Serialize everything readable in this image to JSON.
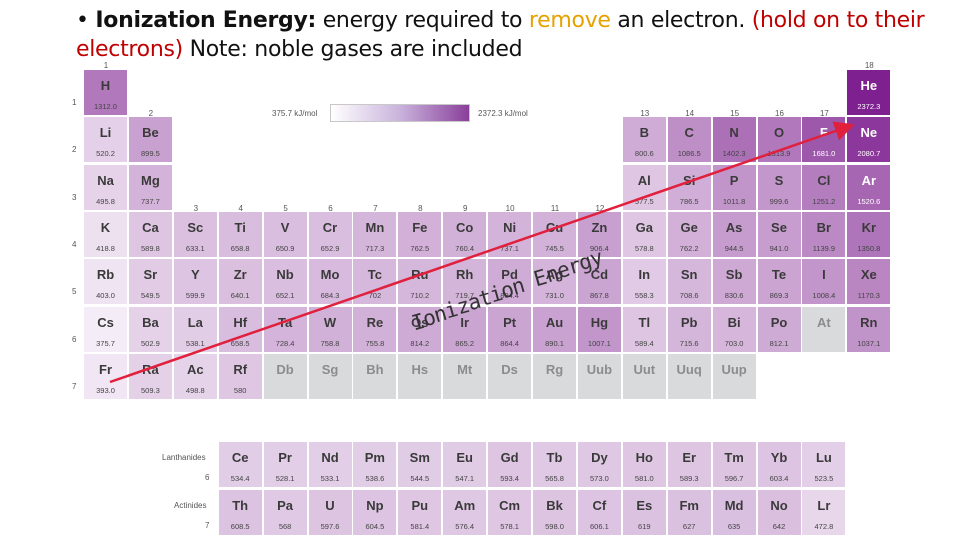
{
  "slide": {
    "bullet": "•",
    "label": "Ionization Energy:",
    "text_1": " energy required to ",
    "text_highlight": "remove",
    "text_2": " an electron. ",
    "text_red": "(hold on to their electrons)",
    "text_3": " Note: noble gases are included"
  },
  "legend": {
    "min": "375.7 kJ/mol",
    "max": "2372.3 kJ/mol"
  },
  "group_labels": [
    "1",
    "2",
    "3",
    "4",
    "5",
    "6",
    "7",
    "8",
    "9",
    "10",
    "11",
    "12",
    "13",
    "14",
    "15",
    "16",
    "17",
    "18"
  ],
  "period_labels": [
    "1",
    "2",
    "3",
    "4",
    "5",
    "6",
    "7"
  ],
  "series_labels": {
    "lanthanides": "Lanthanides",
    "lanthanides_period": "6",
    "actinides": "Actinides",
    "actinides_period": "7"
  },
  "annotation": "Ionization Energy",
  "colors": {
    "arrow": "#e0203c",
    "scale_low": "#ffffff",
    "scale_high": "#8a3f9a",
    "unknown_cell": "#d9dadb"
  },
  "elements": [
    {
      "symbol": "H",
      "value": "1312.0",
      "period": 1,
      "group": 1
    },
    {
      "symbol": "He",
      "value": "2372.3",
      "period": 1,
      "group": 18
    },
    {
      "symbol": "Li",
      "value": "520.2",
      "period": 2,
      "group": 1
    },
    {
      "symbol": "Be",
      "value": "899.5",
      "period": 2,
      "group": 2
    },
    {
      "symbol": "B",
      "value": "800.6",
      "period": 2,
      "group": 13
    },
    {
      "symbol": "C",
      "value": "1086.5",
      "period": 2,
      "group": 14
    },
    {
      "symbol": "N",
      "value": "1402.3",
      "period": 2,
      "group": 15
    },
    {
      "symbol": "O",
      "value": "1313.9",
      "period": 2,
      "group": 16
    },
    {
      "symbol": "F",
      "value": "1681.0",
      "period": 2,
      "group": 17
    },
    {
      "symbol": "Ne",
      "value": "2080.7",
      "period": 2,
      "group": 18
    },
    {
      "symbol": "Na",
      "value": "495.8",
      "period": 3,
      "group": 1
    },
    {
      "symbol": "Mg",
      "value": "737.7",
      "period": 3,
      "group": 2
    },
    {
      "symbol": "Al",
      "value": "577.5",
      "period": 3,
      "group": 13
    },
    {
      "symbol": "Si",
      "value": "786.5",
      "period": 3,
      "group": 14
    },
    {
      "symbol": "P",
      "value": "1011.8",
      "period": 3,
      "group": 15
    },
    {
      "symbol": "S",
      "value": "999.6",
      "period": 3,
      "group": 16
    },
    {
      "symbol": "Cl",
      "value": "1251.2",
      "period": 3,
      "group": 17
    },
    {
      "symbol": "Ar",
      "value": "1520.6",
      "period": 3,
      "group": 18
    },
    {
      "symbol": "K",
      "value": "418.8",
      "period": 4,
      "group": 1
    },
    {
      "symbol": "Ca",
      "value": "589.8",
      "period": 4,
      "group": 2
    },
    {
      "symbol": "Sc",
      "value": "633.1",
      "period": 4,
      "group": 3
    },
    {
      "symbol": "Ti",
      "value": "658.8",
      "period": 4,
      "group": 4
    },
    {
      "symbol": "V",
      "value": "650.9",
      "period": 4,
      "group": 5
    },
    {
      "symbol": "Cr",
      "value": "652.9",
      "period": 4,
      "group": 6
    },
    {
      "symbol": "Mn",
      "value": "717.3",
      "period": 4,
      "group": 7
    },
    {
      "symbol": "Fe",
      "value": "762.5",
      "period": 4,
      "group": 8
    },
    {
      "symbol": "Co",
      "value": "760.4",
      "period": 4,
      "group": 9
    },
    {
      "symbol": "Ni",
      "value": "737.1",
      "period": 4,
      "group": 10
    },
    {
      "symbol": "Cu",
      "value": "745.5",
      "period": 4,
      "group": 11
    },
    {
      "symbol": "Zn",
      "value": "906.4",
      "period": 4,
      "group": 12
    },
    {
      "symbol": "Ga",
      "value": "578.8",
      "period": 4,
      "group": 13
    },
    {
      "symbol": "Ge",
      "value": "762.2",
      "period": 4,
      "group": 14
    },
    {
      "symbol": "As",
      "value": "944.5",
      "period": 4,
      "group": 15
    },
    {
      "symbol": "Se",
      "value": "941.0",
      "period": 4,
      "group": 16
    },
    {
      "symbol": "Br",
      "value": "1139.9",
      "period": 4,
      "group": 17
    },
    {
      "symbol": "Kr",
      "value": "1350.8",
      "period": 4,
      "group": 18
    },
    {
      "symbol": "Rb",
      "value": "403.0",
      "period": 5,
      "group": 1
    },
    {
      "symbol": "Sr",
      "value": "549.5",
      "period": 5,
      "group": 2
    },
    {
      "symbol": "Y",
      "value": "599.9",
      "period": 5,
      "group": 3
    },
    {
      "symbol": "Zr",
      "value": "640.1",
      "period": 5,
      "group": 4
    },
    {
      "symbol": "Nb",
      "value": "652.1",
      "period": 5,
      "group": 5
    },
    {
      "symbol": "Mo",
      "value": "684.3",
      "period": 5,
      "group": 6
    },
    {
      "symbol": "Tc",
      "value": "702",
      "period": 5,
      "group": 7
    },
    {
      "symbol": "Ru",
      "value": "710.2",
      "period": 5,
      "group": 8
    },
    {
      "symbol": "Rh",
      "value": "719.7",
      "period": 5,
      "group": 9
    },
    {
      "symbol": "Pd",
      "value": "804.4",
      "period": 5,
      "group": 10
    },
    {
      "symbol": "Ag",
      "value": "731.0",
      "period": 5,
      "group": 11
    },
    {
      "symbol": "Cd",
      "value": "867.8",
      "period": 5,
      "group": 12
    },
    {
      "symbol": "In",
      "value": "558.3",
      "period": 5,
      "group": 13
    },
    {
      "symbol": "Sn",
      "value": "708.6",
      "period": 5,
      "group": 14
    },
    {
      "symbol": "Sb",
      "value": "830.6",
      "period": 5,
      "group": 15
    },
    {
      "symbol": "Te",
      "value": "869.3",
      "period": 5,
      "group": 16
    },
    {
      "symbol": "I",
      "value": "1008.4",
      "period": 5,
      "group": 17
    },
    {
      "symbol": "Xe",
      "value": "1170.3",
      "period": 5,
      "group": 18
    },
    {
      "symbol": "Cs",
      "value": "375.7",
      "period": 6,
      "group": 1
    },
    {
      "symbol": "Ba",
      "value": "502.9",
      "period": 6,
      "group": 2
    },
    {
      "symbol": "La",
      "value": "538.1",
      "period": 6,
      "group": 3
    },
    {
      "symbol": "Hf",
      "value": "658.5",
      "period": 6,
      "group": 4
    },
    {
      "symbol": "Ta",
      "value": "728.4",
      "period": 6,
      "group": 5
    },
    {
      "symbol": "W",
      "value": "758.8",
      "period": 6,
      "group": 6
    },
    {
      "symbol": "Re",
      "value": "755.8",
      "period": 6,
      "group": 7
    },
    {
      "symbol": "Os",
      "value": "814.2",
      "period": 6,
      "group": 8
    },
    {
      "symbol": "Ir",
      "value": "865.2",
      "period": 6,
      "group": 9
    },
    {
      "symbol": "Pt",
      "value": "864.4",
      "period": 6,
      "group": 10
    },
    {
      "symbol": "Au",
      "value": "890.1",
      "period": 6,
      "group": 11
    },
    {
      "symbol": "Hg",
      "value": "1007.1",
      "period": 6,
      "group": 12
    },
    {
      "symbol": "Tl",
      "value": "589.4",
      "period": 6,
      "group": 13
    },
    {
      "symbol": "Pb",
      "value": "715.6",
      "period": 6,
      "group": 14
    },
    {
      "symbol": "Bi",
      "value": "703.0",
      "period": 6,
      "group": 15
    },
    {
      "symbol": "Po",
      "value": "812.1",
      "period": 6,
      "group": 16
    },
    {
      "symbol": "At",
      "value": "",
      "period": 6,
      "group": 17
    },
    {
      "symbol": "Rn",
      "value": "1037.1",
      "period": 6,
      "group": 18
    },
    {
      "symbol": "Fr",
      "value": "393.0",
      "period": 7,
      "group": 1
    },
    {
      "symbol": "Ra",
      "value": "509.3",
      "period": 7,
      "group": 2
    },
    {
      "symbol": "Ac",
      "value": "498.8",
      "period": 7,
      "group": 3
    },
    {
      "symbol": "Rf",
      "value": "580",
      "period": 7,
      "group": 4
    },
    {
      "symbol": "Db",
      "value": "",
      "period": 7,
      "group": 5
    },
    {
      "symbol": "Sg",
      "value": "",
      "period": 7,
      "group": 6
    },
    {
      "symbol": "Bh",
      "value": "",
      "period": 7,
      "group": 7
    },
    {
      "symbol": "Hs",
      "value": "",
      "period": 7,
      "group": 8
    },
    {
      "symbol": "Mt",
      "value": "",
      "period": 7,
      "group": 9
    },
    {
      "symbol": "Ds",
      "value": "",
      "period": 7,
      "group": 10
    },
    {
      "symbol": "Rg",
      "value": "",
      "period": 7,
      "group": 11
    },
    {
      "symbol": "Uub",
      "value": "",
      "period": 7,
      "group": 12
    },
    {
      "symbol": "Uut",
      "value": "",
      "period": 7,
      "group": 13
    },
    {
      "symbol": "Uuq",
      "value": "",
      "period": 7,
      "group": 14
    },
    {
      "symbol": "Uup",
      "value": "",
      "period": 7,
      "group": 15
    }
  ],
  "lanthanides": [
    {
      "symbol": "Ce",
      "value": "534.4"
    },
    {
      "symbol": "Pr",
      "value": "528.1"
    },
    {
      "symbol": "Nd",
      "value": "533.1"
    },
    {
      "symbol": "Pm",
      "value": "538.6"
    },
    {
      "symbol": "Sm",
      "value": "544.5"
    },
    {
      "symbol": "Eu",
      "value": "547.1"
    },
    {
      "symbol": "Gd",
      "value": "593.4"
    },
    {
      "symbol": "Tb",
      "value": "565.8"
    },
    {
      "symbol": "Dy",
      "value": "573.0"
    },
    {
      "symbol": "Ho",
      "value": "581.0"
    },
    {
      "symbol": "Er",
      "value": "589.3"
    },
    {
      "symbol": "Tm",
      "value": "596.7"
    },
    {
      "symbol": "Yb",
      "value": "603.4"
    },
    {
      "symbol": "Lu",
      "value": "523.5"
    }
  ],
  "actinides": [
    {
      "symbol": "Th",
      "value": "608.5"
    },
    {
      "symbol": "Pa",
      "value": "568"
    },
    {
      "symbol": "U",
      "value": "597.6"
    },
    {
      "symbol": "Np",
      "value": "604.5"
    },
    {
      "symbol": "Pu",
      "value": "581.4"
    },
    {
      "symbol": "Am",
      "value": "576.4"
    },
    {
      "symbol": "Cm",
      "value": "578.1"
    },
    {
      "symbol": "Bk",
      "value": "598.0"
    },
    {
      "symbol": "Cf",
      "value": "606.1"
    },
    {
      "symbol": "Es",
      "value": "619"
    },
    {
      "symbol": "Fm",
      "value": "627"
    },
    {
      "symbol": "Md",
      "value": "635"
    },
    {
      "symbol": "No",
      "value": "642"
    },
    {
      "symbol": "Lr",
      "value": "472.8"
    }
  ]
}
